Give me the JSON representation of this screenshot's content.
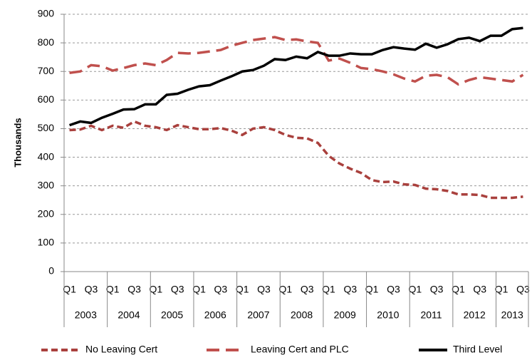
{
  "chart_data": {
    "type": "line",
    "y_label": "Thousands",
    "categories": [
      "Q1",
      null,
      "Q3",
      null,
      "Q1",
      null,
      "Q3",
      null,
      "Q1",
      null,
      "Q3",
      null,
      "Q1",
      null,
      "Q3",
      null,
      "Q1",
      null,
      "Q3",
      null,
      "Q1",
      null,
      "Q3",
      null,
      "Q1",
      null,
      "Q3",
      null,
      "Q1",
      null,
      "Q3",
      null,
      "Q1",
      null,
      "Q3",
      null,
      "Q1",
      null,
      "Q3",
      null,
      "Q1",
      null,
      "Q3"
    ],
    "years": [
      "2003",
      "2004",
      "2005",
      "2006",
      "2007",
      "2008",
      "2009",
      "2010",
      "2011",
      "2012",
      "2013"
    ],
    "series": [
      {
        "name": "No Leaving Cert",
        "color": "#a9403d",
        "dash": "short",
        "values": [
          495,
          497,
          510,
          495,
          510,
          503,
          525,
          510,
          505,
          495,
          512,
          505,
          498,
          498,
          502,
          493,
          478,
          500,
          505,
          495,
          478,
          468,
          466,
          450,
          405,
          378,
          360,
          345,
          320,
          313,
          315,
          305,
          303,
          290,
          288,
          282,
          270,
          270,
          268,
          258,
          258,
          258,
          262
        ]
      },
      {
        "name": "Leaving Cert and PLC",
        "color": "#c0504d",
        "dash": "long",
        "values": [
          695,
          700,
          722,
          718,
          703,
          712,
          722,
          728,
          722,
          740,
          765,
          763,
          765,
          770,
          775,
          790,
          800,
          810,
          815,
          820,
          810,
          812,
          805,
          800,
          738,
          745,
          730,
          712,
          708,
          700,
          690,
          675,
          665,
          685,
          688,
          680,
          655,
          670,
          680,
          675,
          670,
          665,
          688
        ]
      },
      {
        "name": "Third Level",
        "color": "#000000",
        "dash": "solid",
        "values": [
          512,
          525,
          520,
          538,
          552,
          567,
          568,
          585,
          585,
          618,
          622,
          636,
          648,
          652,
          668,
          683,
          700,
          705,
          720,
          743,
          740,
          752,
          746,
          768,
          755,
          755,
          763,
          760,
          760,
          775,
          785,
          780,
          776,
          797,
          783,
          795,
          813,
          818,
          806,
          825,
          825,
          848,
          852
        ]
      }
    ],
    "ylim": [
      0,
      900
    ],
    "yticks": [
      0,
      100,
      200,
      300,
      400,
      500,
      600,
      700,
      800,
      900
    ],
    "grid": true
  }
}
